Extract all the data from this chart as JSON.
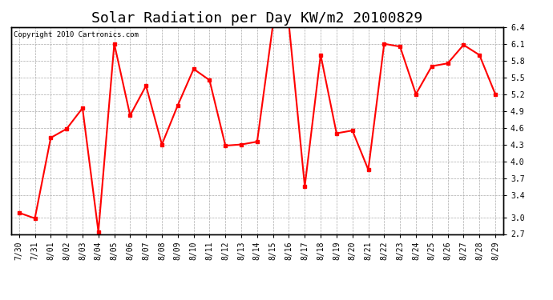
{
  "title": "Solar Radiation per Day KW/m2 20100829",
  "copyright_text": "Copyright 2010 Cartronics.com",
  "dates": [
    "7/30",
    "7/31",
    "8/01",
    "8/02",
    "8/03",
    "8/04",
    "8/05",
    "8/06",
    "8/07",
    "8/08",
    "8/09",
    "8/10",
    "8/11",
    "8/12",
    "8/13",
    "8/14",
    "8/15",
    "8/16",
    "8/17",
    "8/18",
    "8/19",
    "8/20",
    "8/21",
    "8/22",
    "8/23",
    "8/24",
    "8/25",
    "8/26",
    "8/27",
    "8/28",
    "8/29"
  ],
  "values": [
    3.08,
    2.98,
    4.42,
    4.58,
    4.95,
    2.74,
    6.1,
    4.82,
    5.35,
    4.3,
    5.0,
    5.65,
    5.45,
    4.28,
    4.3,
    4.35,
    6.45,
    6.45,
    3.55,
    5.9,
    4.5,
    4.55,
    3.85,
    6.1,
    6.05,
    5.2,
    5.7,
    5.75,
    6.08,
    5.9,
    5.2
  ],
  "line_color": "#ff0000",
  "marker": "s",
  "marker_size": 2.5,
  "line_width": 1.5,
  "ylim": [
    2.7,
    6.4
  ],
  "yticks": [
    2.7,
    3.0,
    3.4,
    3.7,
    4.0,
    4.3,
    4.6,
    4.9,
    5.2,
    5.5,
    5.8,
    6.1,
    6.4
  ],
  "background_color": "#ffffff",
  "grid_color": "#aaaaaa",
  "title_fontsize": 13,
  "tick_label_fontsize": 7,
  "copyright_fontsize": 6.5
}
